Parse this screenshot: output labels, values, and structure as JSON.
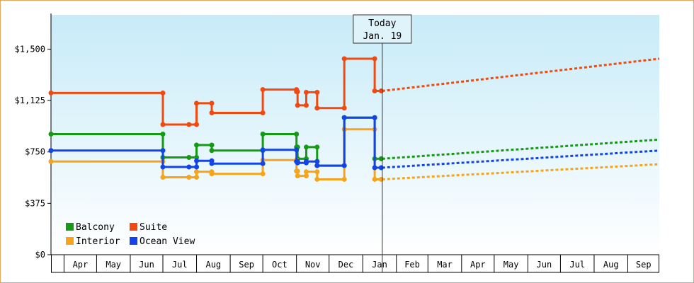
{
  "chart_data": {
    "type": "line",
    "title": "",
    "xlabel": "",
    "ylabel": "",
    "x_axis_type": "date",
    "xlim": [
      "2023-03-20",
      "2024-09-30"
    ],
    "ylim": [
      0,
      1750
    ],
    "y_ticks": [
      0,
      375,
      750,
      1125,
      1500
    ],
    "y_tick_labels": [
      "$0",
      "$375",
      "$750",
      "$1,125",
      "$1,500"
    ],
    "x_ticks": [
      {
        "date": "2023-04-01",
        "label": "Apr"
      },
      {
        "date": "2023-05-01",
        "label": "May"
      },
      {
        "date": "2023-06-01",
        "label": "Jun"
      },
      {
        "date": "2023-07-01",
        "label": "Jul"
      },
      {
        "date": "2023-08-01",
        "label": "Aug"
      },
      {
        "date": "2023-09-01",
        "label": "Sep"
      },
      {
        "date": "2023-10-01",
        "label": "Oct"
      },
      {
        "date": "2023-11-01",
        "label": "Nov"
      },
      {
        "date": "2023-12-01",
        "label": "Dec"
      },
      {
        "date": "2024-01-01",
        "label": "Jan"
      },
      {
        "date": "2024-02-01",
        "label": "Feb"
      },
      {
        "date": "2024-03-01",
        "label": "Mar"
      },
      {
        "date": "2024-04-01",
        "label": "Apr"
      },
      {
        "date": "2024-05-01",
        "label": "May"
      },
      {
        "date": "2024-06-01",
        "label": "Jun"
      },
      {
        "date": "2024-07-01",
        "label": "Jul"
      },
      {
        "date": "2024-08-01",
        "label": "Aug"
      },
      {
        "date": "2024-09-01",
        "label": "Sep"
      }
    ],
    "today": {
      "date": "2024-01-19",
      "line1": "Today",
      "line2": "Jan. 19"
    },
    "legend_position": "bottom-left",
    "grid": false,
    "series": [
      {
        "name": "Balcony",
        "color": "#159a15",
        "step": true,
        "points": [
          [
            "2023-03-20",
            880
          ],
          [
            "2023-07-01",
            880
          ],
          [
            "2023-07-01",
            710
          ],
          [
            "2023-07-25",
            710
          ],
          [
            "2023-08-01",
            710
          ],
          [
            "2023-08-01",
            800
          ],
          [
            "2023-08-15",
            800
          ],
          [
            "2023-08-15",
            760
          ],
          [
            "2023-10-01",
            760
          ],
          [
            "2023-10-01",
            880
          ],
          [
            "2023-11-01",
            880
          ],
          [
            "2023-11-01",
            785
          ],
          [
            "2023-11-02",
            785
          ],
          [
            "2023-11-02",
            700
          ],
          [
            "2023-11-10",
            700
          ],
          [
            "2023-11-10",
            785
          ],
          [
            "2023-11-20",
            785
          ],
          [
            "2023-11-20",
            650
          ],
          [
            "2023-12-15",
            650
          ],
          [
            "2023-12-15",
            1000
          ],
          [
            "2024-01-12",
            1000
          ],
          [
            "2024-01-12",
            700
          ],
          [
            "2024-01-18",
            700
          ]
        ],
        "projection": [
          [
            "2024-01-19",
            700
          ],
          [
            "2024-09-30",
            840
          ]
        ]
      },
      {
        "name": "Suite",
        "color": "#f04a10",
        "step": true,
        "points": [
          [
            "2023-03-20",
            1180
          ],
          [
            "2023-07-01",
            1180
          ],
          [
            "2023-07-01",
            950
          ],
          [
            "2023-07-25",
            950
          ],
          [
            "2023-08-01",
            950
          ],
          [
            "2023-08-01",
            1105
          ],
          [
            "2023-08-15",
            1105
          ],
          [
            "2023-08-15",
            1035
          ],
          [
            "2023-10-01",
            1035
          ],
          [
            "2023-10-01",
            1205
          ],
          [
            "2023-11-01",
            1205
          ],
          [
            "2023-11-01",
            1190
          ],
          [
            "2023-11-02",
            1190
          ],
          [
            "2023-11-02",
            1090
          ],
          [
            "2023-11-10",
            1090
          ],
          [
            "2023-11-10",
            1185
          ],
          [
            "2023-11-20",
            1185
          ],
          [
            "2023-11-20",
            1070
          ],
          [
            "2023-12-15",
            1070
          ],
          [
            "2023-12-15",
            1430
          ],
          [
            "2024-01-12",
            1430
          ],
          [
            "2024-01-12",
            1195
          ],
          [
            "2024-01-18",
            1195
          ]
        ],
        "projection": [
          [
            "2024-01-19",
            1195
          ],
          [
            "2024-09-30",
            1430
          ]
        ]
      },
      {
        "name": "Interior",
        "color": "#f5a41c",
        "step": true,
        "points": [
          [
            "2023-03-20",
            680
          ],
          [
            "2023-07-01",
            680
          ],
          [
            "2023-07-01",
            565
          ],
          [
            "2023-07-25",
            565
          ],
          [
            "2023-08-01",
            565
          ],
          [
            "2023-08-01",
            605
          ],
          [
            "2023-08-15",
            605
          ],
          [
            "2023-08-15",
            590
          ],
          [
            "2023-10-01",
            590
          ],
          [
            "2023-10-01",
            690
          ],
          [
            "2023-11-01",
            690
          ],
          [
            "2023-11-01",
            610
          ],
          [
            "2023-11-02",
            610
          ],
          [
            "2023-11-02",
            575
          ],
          [
            "2023-11-10",
            575
          ],
          [
            "2023-11-10",
            605
          ],
          [
            "2023-11-20",
            605
          ],
          [
            "2023-11-20",
            550
          ],
          [
            "2023-12-15",
            550
          ],
          [
            "2023-12-15",
            915
          ],
          [
            "2024-01-12",
            915
          ],
          [
            "2024-01-12",
            550
          ],
          [
            "2024-01-18",
            550
          ]
        ],
        "projection": [
          [
            "2024-01-19",
            550
          ],
          [
            "2024-09-30",
            660
          ]
        ]
      },
      {
        "name": "Ocean View",
        "color": "#1244e8",
        "step": true,
        "points": [
          [
            "2023-03-20",
            760
          ],
          [
            "2023-07-01",
            760
          ],
          [
            "2023-07-01",
            640
          ],
          [
            "2023-07-25",
            640
          ],
          [
            "2023-08-01",
            640
          ],
          [
            "2023-08-01",
            685
          ],
          [
            "2023-08-15",
            685
          ],
          [
            "2023-08-15",
            665
          ],
          [
            "2023-10-01",
            665
          ],
          [
            "2023-10-01",
            765
          ],
          [
            "2023-11-01",
            765
          ],
          [
            "2023-11-01",
            680
          ],
          [
            "2023-11-02",
            680
          ],
          [
            "2023-11-02",
            670
          ],
          [
            "2023-11-10",
            670
          ],
          [
            "2023-11-10",
            680
          ],
          [
            "2023-11-20",
            680
          ],
          [
            "2023-11-20",
            650
          ],
          [
            "2023-12-15",
            650
          ],
          [
            "2023-12-15",
            1000
          ],
          [
            "2024-01-12",
            1000
          ],
          [
            "2024-01-12",
            635
          ],
          [
            "2024-01-18",
            635
          ]
        ],
        "projection": [
          [
            "2024-01-19",
            635
          ],
          [
            "2024-09-30",
            760
          ]
        ]
      }
    ],
    "legend": [
      {
        "label": "Balcony",
        "color": "#159a15"
      },
      {
        "label": "Suite",
        "color": "#f04a10"
      },
      {
        "label": "Interior",
        "color": "#f5a41c"
      },
      {
        "label": "Ocean View",
        "color": "#1244e8"
      }
    ]
  }
}
